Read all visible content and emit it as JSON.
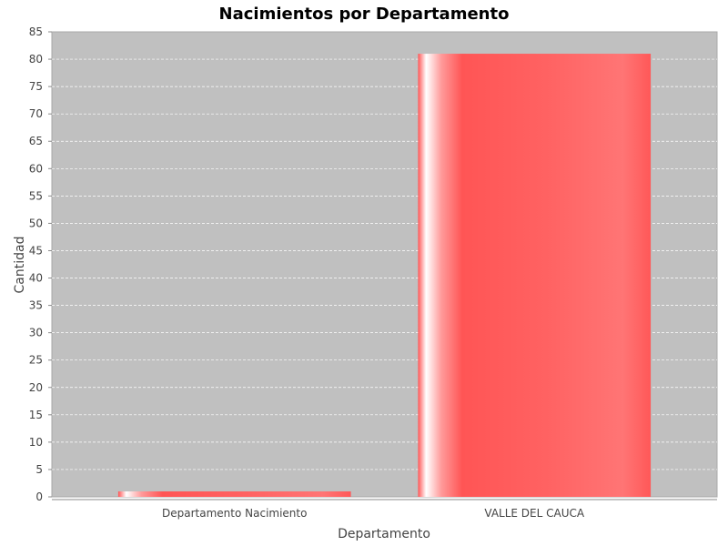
{
  "chart_data": {
    "type": "bar",
    "title": "Nacimientos por Departamento",
    "xlabel": "Departamento",
    "ylabel": "Cantidad",
    "categories": [
      "Departamento Nacimiento",
      "VALLE DEL CAUCA"
    ],
    "values": [
      1,
      81
    ],
    "ylim": [
      0,
      85
    ],
    "yticks": [
      0,
      5,
      10,
      15,
      20,
      25,
      30,
      35,
      40,
      45,
      50,
      55,
      60,
      65,
      70,
      75,
      80,
      85
    ],
    "grid": true,
    "legend": "none",
    "colors": {
      "plot_background": "#c0c0c0",
      "bar": "#ff5555",
      "bar_highlight": "#ffffff",
      "gridline": "#ffffff"
    }
  }
}
